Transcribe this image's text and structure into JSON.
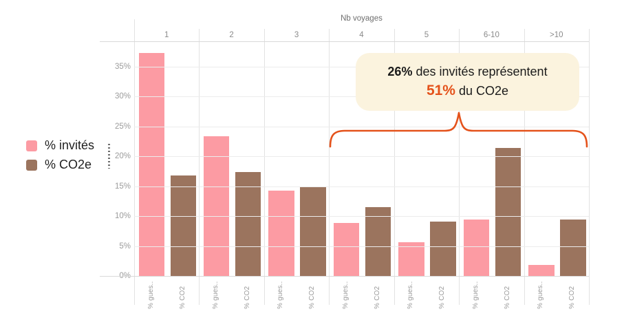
{
  "chart_data": {
    "type": "bar",
    "title": "Nb voyages",
    "categories": [
      "1",
      "2",
      "3",
      "4",
      "5",
      "6-10",
      ">10"
    ],
    "series": [
      {
        "key": "invites",
        "name": "% invités",
        "color": "#FC9BA3",
        "values": [
          37.2,
          23.3,
          14.3,
          8.9,
          5.6,
          9.4,
          1.8
        ]
      },
      {
        "key": "co2e",
        "name": "% CO2e",
        "color": "#9B745E",
        "values": [
          16.8,
          17.4,
          14.9,
          11.5,
          9.1,
          21.4,
          9.4
        ]
      }
    ],
    "bar_axis_labels": [
      "% gues..",
      "% CO2"
    ],
    "y_ticks": [
      0,
      5,
      10,
      15,
      20,
      25,
      30,
      35
    ],
    "y_tick_suffix": "%",
    "ylim": [
      0,
      39
    ],
    "grid": true,
    "legend_position": "left"
  },
  "header": {
    "title": "Nb voyages"
  },
  "legend": {
    "items": [
      {
        "label": "% invités",
        "color": "#FC9BA3"
      },
      {
        "label": "% CO2e",
        "color": "#9B745E"
      }
    ]
  },
  "annotation": {
    "line1_highlight": "26%",
    "line1_rest": " des invités représentent",
    "line2_highlight": "51%",
    "line2_rest": " du CO2e",
    "highlight_color": "#E4521B",
    "background": "#FBF3DE",
    "brace_color": "#E4521B",
    "brace_span_categories": [
      "4",
      "5",
      "6-10",
      ">10"
    ]
  }
}
